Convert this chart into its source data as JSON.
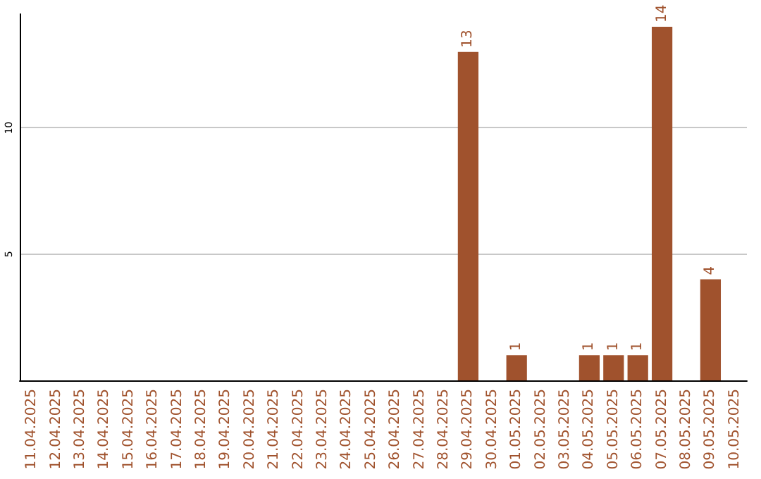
{
  "chart_data": {
    "type": "bar",
    "categories": [
      "11.04.2025",
      "12.04.2025",
      "13.04.2025",
      "14.04.2025",
      "15.04.2025",
      "16.04.2025",
      "17.04.2025",
      "18.04.2025",
      "19.04.2025",
      "20.04.2025",
      "21.04.2025",
      "22.04.2025",
      "23.04.2025",
      "24.04.2025",
      "25.04.2025",
      "26.04.2025",
      "27.04.2025",
      "28.04.2025",
      "29.04.2025",
      "30.04.2025",
      "01.05.2025",
      "02.05.2025",
      "03.05.2025",
      "04.05.2025",
      "05.05.2025",
      "06.05.2025",
      "07.05.2025",
      "08.05.2025",
      "09.05.2025",
      "10.05.2025"
    ],
    "values": [
      0,
      0,
      0,
      0,
      0,
      0,
      0,
      0,
      0,
      0,
      0,
      0,
      0,
      0,
      0,
      0,
      0,
      0,
      13,
      0,
      1,
      0,
      0,
      1,
      1,
      1,
      14,
      0,
      4,
      0
    ],
    "value_labels": [
      null,
      null,
      null,
      null,
      null,
      null,
      null,
      null,
      null,
      null,
      null,
      null,
      null,
      null,
      null,
      null,
      null,
      null,
      "13",
      null,
      "1",
      null,
      null,
      "1",
      "1",
      "1",
      "14",
      null,
      "4",
      null
    ],
    "color": "#a0522d",
    "ylim": [
      0,
      14.5
    ],
    "yticks": [
      5,
      10
    ],
    "grid": "y"
  }
}
